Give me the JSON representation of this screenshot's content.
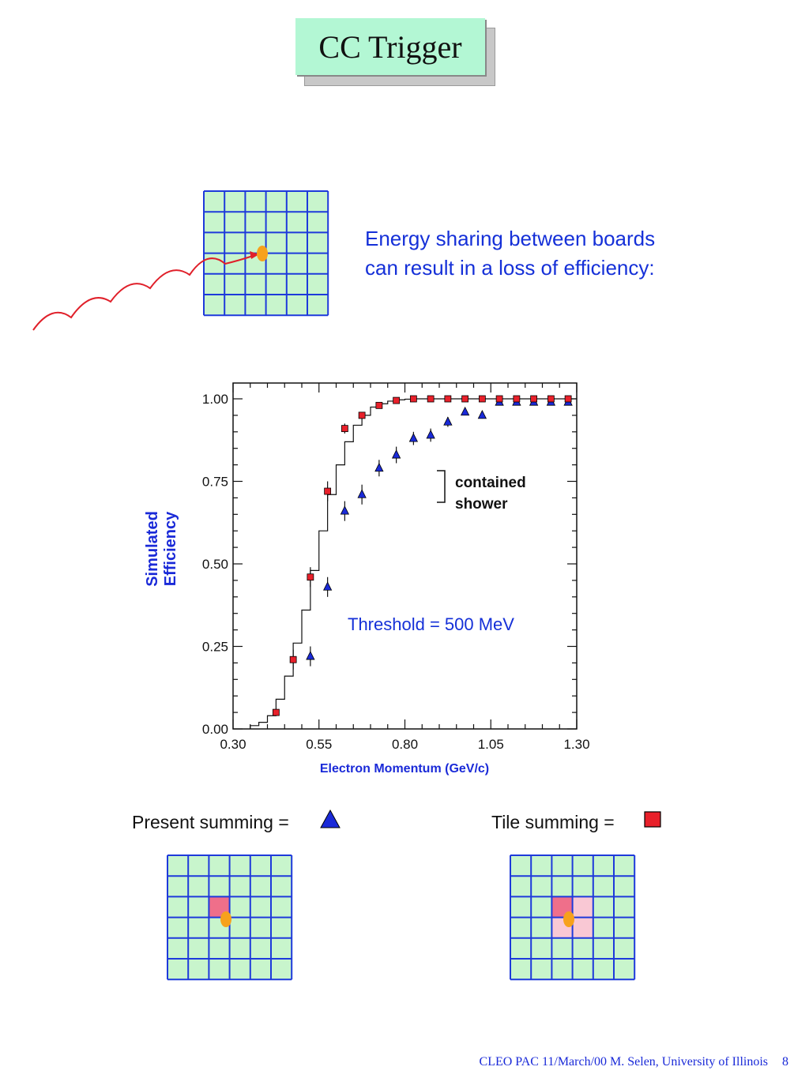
{
  "title": "CC Trigger",
  "intro": {
    "line1": "Energy sharing between boards",
    "line2": "can result in a loss of efficiency:"
  },
  "colors": {
    "grid_fill": "#c8f5cc",
    "grid_line": "#1e3adb",
    "hit_cell": "#ef6f8a",
    "shared_cell": "#f9c8d4",
    "photon_path": "#e0202a",
    "dot": "#f7a11c",
    "present_marker": "#1a2ad8",
    "tile_marker": "#e8202a",
    "text_blue": "#1530d8"
  },
  "chart_data": {
    "type": "scatter",
    "title": "",
    "xlabel": "Electron Momentum (GeV/c)",
    "ylabel": "Simulated Efficiency",
    "xlim": [
      0.3,
      1.3
    ],
    "ylim": [
      0.0,
      1.0
    ],
    "xticks": [
      "0.30",
      "0.55",
      "0.80",
      "1.05",
      "1.30"
    ],
    "yticks": [
      "0.00",
      "0.25",
      "0.50",
      "0.75",
      "1.00"
    ],
    "annotation": "Threshold = 500 MeV",
    "contained_label": [
      "contained",
      "shower"
    ],
    "series": [
      {
        "name": "Present summing",
        "marker": "triangle",
        "x": [
          0.525,
          0.575,
          0.625,
          0.675,
          0.725,
          0.775,
          0.825,
          0.875,
          0.925,
          0.975,
          1.025,
          1.075,
          1.125,
          1.175,
          1.225,
          1.275
        ],
        "y": [
          0.22,
          0.43,
          0.66,
          0.71,
          0.79,
          0.83,
          0.88,
          0.89,
          0.93,
          0.96,
          0.95,
          0.99,
          0.99,
          0.99,
          0.99,
          0.99
        ],
        "err": [
          0.03,
          0.03,
          0.03,
          0.03,
          0.025,
          0.025,
          0.02,
          0.02,
          0.015,
          0.01,
          0.01,
          0.008,
          0.008,
          0.008,
          0.006,
          0.006
        ]
      },
      {
        "name": "Tile summing",
        "marker": "square",
        "x": [
          0.425,
          0.475,
          0.525,
          0.575,
          0.625,
          0.675,
          0.725,
          0.775,
          0.825,
          0.875,
          0.925,
          0.975,
          1.025,
          1.075,
          1.125,
          1.175,
          1.225,
          1.275
        ],
        "y": [
          0.05,
          0.21,
          0.46,
          0.72,
          0.91,
          0.95,
          0.98,
          0.995,
          1.0,
          1.0,
          1.0,
          1.0,
          1.0,
          1.0,
          1.0,
          1.0,
          1.0,
          1.0
        ],
        "err": [
          0.01,
          0.03,
          0.03,
          0.03,
          0.015,
          0.01,
          0.006,
          0.004,
          0.003,
          0.002,
          0.002,
          0.002,
          0.002,
          0.002,
          0.002,
          0.002,
          0.002,
          0.002
        ]
      },
      {
        "name": "contained shower",
        "marker": "step",
        "x": [
          0.35,
          0.375,
          0.4,
          0.425,
          0.45,
          0.475,
          0.5,
          0.525,
          0.55,
          0.575,
          0.6,
          0.625,
          0.65,
          0.675,
          0.7,
          0.725,
          0.75,
          0.775,
          0.8,
          0.825,
          0.85,
          1.3
        ],
        "y": [
          0.01,
          0.02,
          0.04,
          0.09,
          0.16,
          0.26,
          0.36,
          0.48,
          0.6,
          0.71,
          0.8,
          0.87,
          0.92,
          0.95,
          0.975,
          0.985,
          0.993,
          0.997,
          0.999,
          1.0,
          1.0,
          1.0
        ]
      }
    ]
  },
  "legend": {
    "present_label": "Present summing =",
    "tile_label": "Tile summing ="
  },
  "footer": {
    "text": "CLEO PAC  11/March/00  M. Selen, University of Illinois",
    "page": "8"
  }
}
